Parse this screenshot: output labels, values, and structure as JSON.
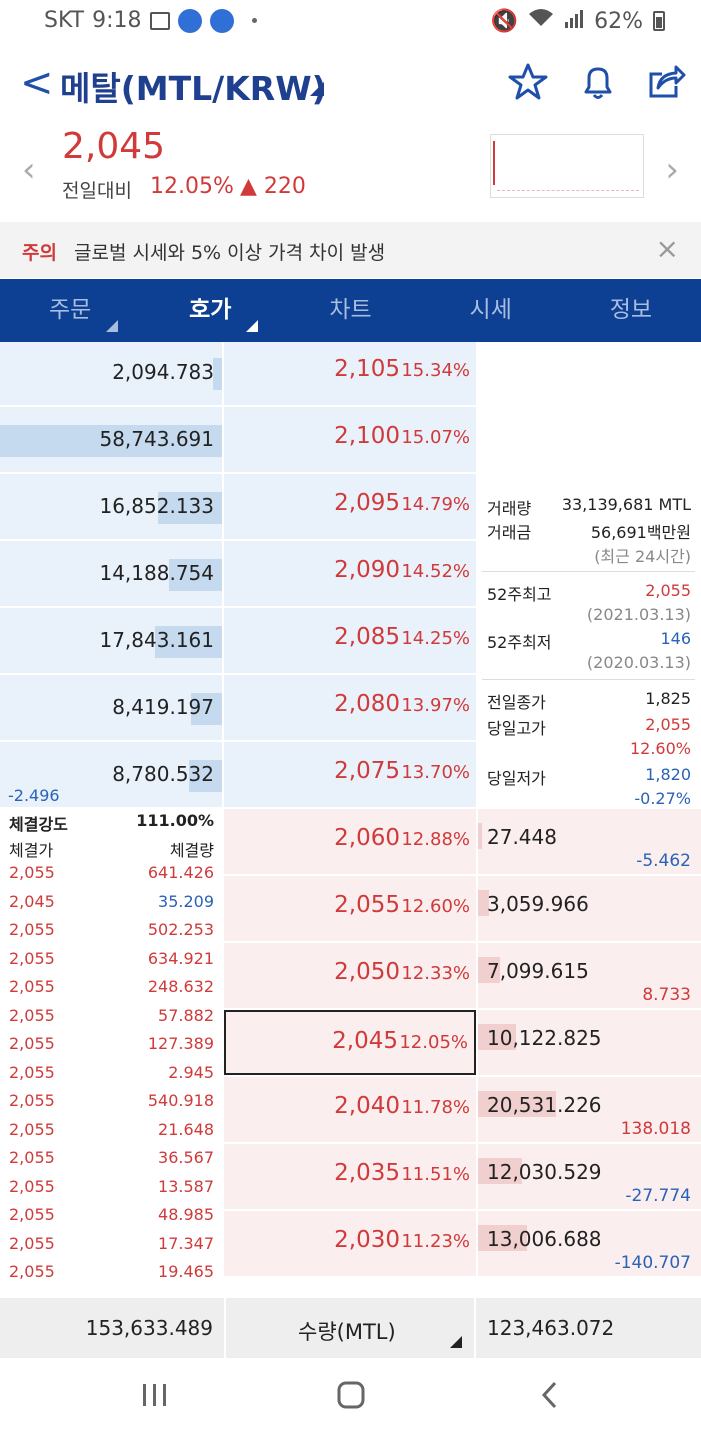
{
  "status": {
    "carrier": "SKT",
    "time": "9:18",
    "battery": "62%"
  },
  "header": {
    "back": "<",
    "title": "메탈(MTL/KRW)"
  },
  "price": {
    "current": "2,045",
    "prev_label": "전일대비",
    "change_pct": "12.05%",
    "change_amt": "▲ 220"
  },
  "notice": {
    "tag": "주의",
    "message": "글로벌 시세와 5% 이상 가격 차이 발생",
    "close": "×"
  },
  "tabs": [
    {
      "label": "주문",
      "dropdown": true
    },
    {
      "label": "호가",
      "dropdown": true,
      "active": true
    },
    {
      "label": "차트",
      "dropdown": false
    },
    {
      "label": "시세",
      "dropdown": false
    },
    {
      "label": "정보",
      "dropdown": false
    }
  ],
  "asks": [
    {
      "qty": "2,094.783",
      "price": "2,105",
      "pct": "15.34%",
      "level": 0.04
    },
    {
      "qty": "58,743.691",
      "price": "2,100",
      "pct": "15.07%",
      "level": 1.0
    },
    {
      "qty": "16,852.133",
      "price": "2,095",
      "pct": "14.79%",
      "level": 0.29
    },
    {
      "qty": "14,188.754",
      "price": "2,090",
      "pct": "14.52%",
      "level": 0.24
    },
    {
      "qty": "17,843.161",
      "price": "2,085",
      "pct": "14.25%",
      "level": 0.3
    },
    {
      "qty": "8,419.197",
      "price": "2,080",
      "pct": "13.97%",
      "level": 0.14
    },
    {
      "qty": "8,780.532",
      "price": "2,075",
      "pct": "13.70%",
      "level": 0.15,
      "diff": "-2.496"
    }
  ],
  "bids": [
    {
      "qty": "27.448",
      "price": "2,060",
      "pct": "12.88%",
      "level": 0.0,
      "diff": "-5.462",
      "diff_color": "#2a62b8"
    },
    {
      "qty": "3,059.966",
      "price": "2,055",
      "pct": "12.60%",
      "level": 0.05
    },
    {
      "qty": "7,099.615",
      "price": "2,050",
      "pct": "12.33%",
      "level": 0.1,
      "diff": "8.733",
      "diff_color": "#d03a3a"
    },
    {
      "qty": "10,122.825",
      "price": "2,045",
      "pct": "12.05%",
      "level": 0.17,
      "current": true
    },
    {
      "qty": "20,531.226",
      "price": "2,040",
      "pct": "11.78%",
      "level": 0.35,
      "diff": "138.018",
      "diff_color": "#d03a3a"
    },
    {
      "qty": "12,030.529",
      "price": "2,035",
      "pct": "11.51%",
      "level": 0.2,
      "diff": "-27.774",
      "diff_color": "#2a62b8"
    },
    {
      "qty": "13,006.688",
      "price": "2,030",
      "pct": "11.23%",
      "level": 0.22,
      "diff": "-140.707",
      "diff_color": "#2a62b8"
    }
  ],
  "info": {
    "volume_label": "거래량",
    "volume": "33,139,681 MTL",
    "amount_label": "거래금",
    "amount": "56,691백만원",
    "period": "(최근 24시간)",
    "high52_label": "52주최고",
    "high52": "2,055",
    "high52_date": "(2021.03.13)",
    "low52_label": "52주최저",
    "low52": "146",
    "low52_date": "(2020.03.13)",
    "prev_close_label": "전일종가",
    "prev_close": "1,825",
    "day_high_label": "당일고가",
    "day_high": "2,055",
    "day_high_pct": "12.60%",
    "day_low_label": "당일저가",
    "day_low": "1,820",
    "day_low_pct": "-0.27%"
  },
  "trades": {
    "strength_label": "체결강도",
    "strength": "111.00%",
    "price_header": "체결가",
    "qty_header": "체결량",
    "rows": [
      {
        "price": "2,055",
        "qty": "641.426",
        "color": "#d03a3a"
      },
      {
        "price": "2,045",
        "qty": "35.209",
        "color": "#2a62b8"
      },
      {
        "price": "2,055",
        "qty": "502.253",
        "color": "#d03a3a"
      },
      {
        "price": "2,055",
        "qty": "634.921",
        "color": "#d03a3a"
      },
      {
        "price": "2,055",
        "qty": "248.632",
        "color": "#d03a3a"
      },
      {
        "price": "2,055",
        "qty": "57.882",
        "color": "#d03a3a"
      },
      {
        "price": "2,055",
        "qty": "127.389",
        "color": "#d03a3a"
      },
      {
        "price": "2,055",
        "qty": "2.945",
        "color": "#d03a3a"
      },
      {
        "price": "2,055",
        "qty": "540.918",
        "color": "#d03a3a"
      },
      {
        "price": "2,055",
        "qty": "21.648",
        "color": "#d03a3a"
      },
      {
        "price": "2,055",
        "qty": "36.567",
        "color": "#d03a3a"
      },
      {
        "price": "2,055",
        "qty": "13.587",
        "color": "#d03a3a"
      },
      {
        "price": "2,055",
        "qty": "48.985",
        "color": "#d03a3a"
      },
      {
        "price": "2,055",
        "qty": "17.347",
        "color": "#d03a3a"
      },
      {
        "price": "2,055",
        "qty": "19.465",
        "color": "#d03a3a"
      }
    ]
  },
  "footer": {
    "ask_total": "153,633.489",
    "unit_label": "수량(MTL)",
    "bid_total": "123,463.072"
  },
  "colors": {
    "up": "#d03a3a",
    "down": "#2a62b8",
    "brand": "#0d3f92"
  }
}
